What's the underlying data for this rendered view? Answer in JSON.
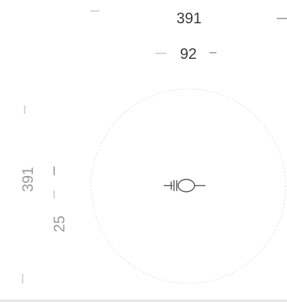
{
  "dimensions": {
    "overall_width": "391",
    "inner_width": "92",
    "overall_height": "391",
    "inner_height": "25"
  }
}
